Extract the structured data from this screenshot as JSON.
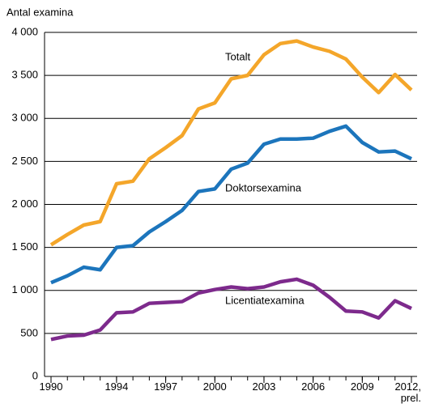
{
  "chart_data": {
    "type": "line",
    "ylabel": "Antal examina",
    "x": [
      1990,
      1991,
      1992,
      1993,
      1994,
      1995,
      1996,
      1997,
      1998,
      1999,
      2000,
      2001,
      2002,
      2003,
      2004,
      2005,
      2006,
      2007,
      2008,
      2009,
      2010,
      2011,
      2012
    ],
    "xlim": [
      1990,
      2012
    ],
    "xticks": [
      1990,
      1994,
      1997,
      2000,
      2003,
      2006,
      2009,
      {
        "value": 2012,
        "label": "2012, prel."
      }
    ],
    "ylim": [
      0,
      4000
    ],
    "yticks": [
      0,
      500,
      {
        "value": 1000,
        "label": "1 000"
      },
      {
        "value": 1500,
        "label": "1 500"
      },
      {
        "value": 2000,
        "label": "2 000"
      },
      {
        "value": 2500,
        "label": "2 500"
      },
      {
        "value": 3000,
        "label": "3 000"
      },
      {
        "value": 3500,
        "label": "3 500"
      },
      {
        "value": 4000,
        "label": "4 000"
      }
    ],
    "grid": true,
    "series": [
      {
        "name": "Totalt",
        "color": "#f4a62a",
        "values": [
          1530,
          1650,
          1760,
          1800,
          2240,
          2270,
          2530,
          2660,
          2800,
          3110,
          3180,
          3460,
          3500,
          3740,
          3870,
          3900,
          3830,
          3780,
          3690,
          3480,
          3300,
          3510,
          3330
        ]
      },
      {
        "name": "Doktorsexamina",
        "color": "#1c75bc",
        "values": [
          1090,
          1170,
          1270,
          1240,
          1500,
          1520,
          1680,
          1800,
          1930,
          2150,
          2180,
          2410,
          2480,
          2700,
          2760,
          2760,
          2770,
          2850,
          2910,
          2720,
          2610,
          2620,
          2530
        ]
      },
      {
        "name": "Licentiatexamina",
        "color": "#7d2a8c",
        "values": [
          430,
          470,
          480,
          540,
          740,
          750,
          850,
          860,
          870,
          970,
          1010,
          1040,
          1020,
          1040,
          1100,
          1130,
          1060,
          920,
          760,
          750,
          680,
          880,
          790
        ]
      }
    ]
  }
}
